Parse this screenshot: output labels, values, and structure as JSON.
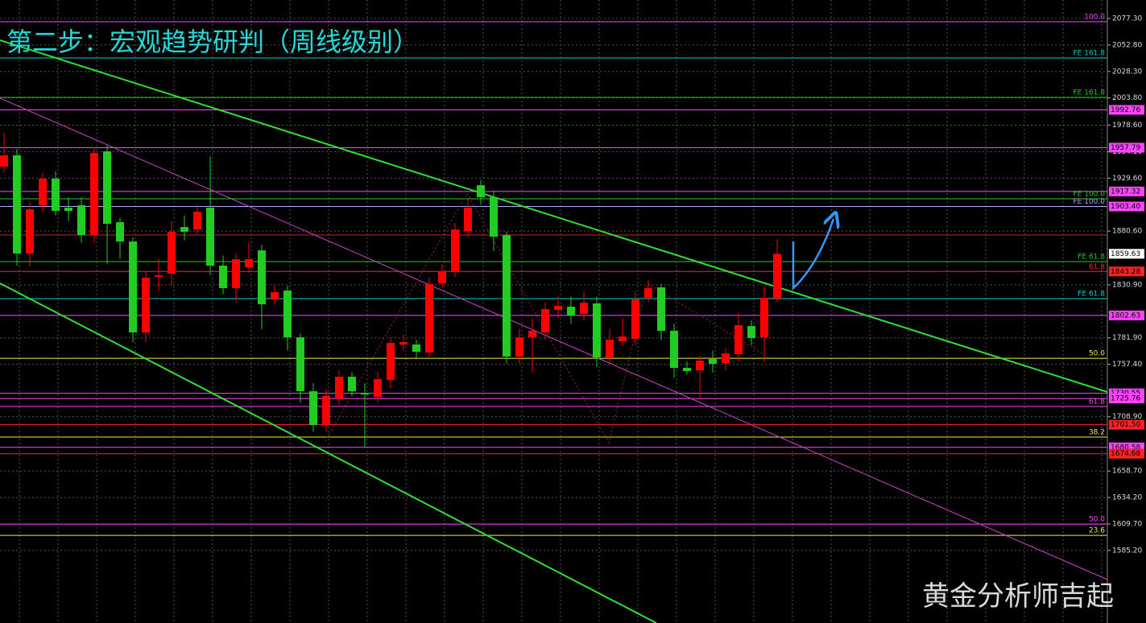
{
  "chart_data": {
    "type": "candlestick",
    "title": "第二步：宏观趋势研判（周线级别）",
    "watermark": "黄金分析师吉起",
    "up_color": "#ff0000",
    "down_color": "#22cc22",
    "ylim": [
      1518.1,
      2094.4
    ],
    "yticks": [
      {
        "value": 2077.3,
        "label": "2077.30"
      },
      {
        "value": 2052.8,
        "label": "2052.80"
      },
      {
        "value": 2028.3,
        "label": "2028.30"
      },
      {
        "value": 2003.8,
        "label": "2003.80"
      },
      {
        "value": 1978.6,
        "label": "1978.60"
      },
      {
        "value": 1954.1,
        "label": "1954.10"
      },
      {
        "value": 1929.6,
        "label": "1929.60"
      },
      {
        "value": 1880.6,
        "label": "1880.60"
      },
      {
        "value": 1830.9,
        "label": "1830.90"
      },
      {
        "value": 1781.9,
        "label": "1781.90"
      },
      {
        "value": 1757.4,
        "label": "1757.40"
      },
      {
        "value": 1708.9,
        "label": "1708.90"
      },
      {
        "value": 1658.7,
        "label": "1658.70"
      },
      {
        "value": 1634.2,
        "label": "1634.20"
      },
      {
        "value": 1609.7,
        "label": "1609.70"
      },
      {
        "value": 1585.2,
        "label": "1585.20"
      }
    ],
    "grid": true,
    "open": [
      1940.3,
      1950.7,
      1859.9,
      1904.5,
      1929.1,
      1902.3,
      1904.5,
      1877.0,
      1954.4,
      1888.9,
      1871.0,
      1786.9,
      1838.3,
      1841.2,
      1884.4,
      1882.2,
      1902.3,
      1848.7,
      1827.8,
      1847.2,
      1862.8,
      1817.4,
      1825.6,
      1782.4,
      1732.5,
      1702.0,
      1725.8,
      1745.9,
      1731.0,
      1727.3,
      1742.9,
      1775.7,
      1775.7,
      1768.3,
      1832.3,
      1842.7,
      1880.7,
      1923.1,
      1912.0,
      1877.0,
      1764.5,
      1782.4,
      1786.9,
      1807.7,
      1810.7,
      1804.0,
      1813.7,
      1763.8,
      1778.7,
      1780.9,
      1818.9,
      1828.6,
      1788.4,
      1754.1,
      1751.9,
      1762.3,
      1758.6,
      1766.8,
      1792.8,
      1782.4,
      1818.2
    ],
    "high": [
      1971.5,
      1956.6,
      1908,
      1935,
      1936,
      1912,
      1912,
      1958,
      1960,
      1893,
      1875,
      1843,
      1855,
      1890,
      1895,
      1905,
      1950,
      1858,
      1860,
      1870,
      1868,
      1830,
      1830,
      1786,
      1740,
      1735,
      1752,
      1750,
      1740,
      1750,
      1782,
      1785,
      1780,
      1838,
      1850,
      1888,
      1910,
      1928,
      1918,
      1880,
      1790,
      1800,
      1815,
      1820,
      1820,
      1825,
      1820,
      1790,
      1800,
      1825,
      1835,
      1832,
      1795,
      1760,
      1765,
      1770,
      1772,
      1805,
      1798,
      1830,
      1873
    ],
    "low": [
      1935,
      1848.7,
      1848,
      1898,
      1895,
      1890,
      1870,
      1870,
      1850,
      1855,
      1778,
      1778,
      1825,
      1830,
      1872,
      1878,
      1840,
      1822,
      1815,
      1842,
      1790,
      1812,
      1770,
      1722,
      1695,
      1695,
      1720,
      1728,
      1680,
      1722,
      1735,
      1770,
      1762,
      1762,
      1828,
      1838,
      1875,
      1905,
      1862,
      1758,
      1758,
      1750,
      1780,
      1800,
      1795,
      1798,
      1755,
      1757,
      1775,
      1775,
      1815,
      1780,
      1745,
      1748,
      1725,
      1750,
      1752,
      1760,
      1775,
      1760,
      1815
    ],
    "close": [
      1950.7,
      1859.9,
      1900.8,
      1929.1,
      1899.3,
      1899.3,
      1877.0,
      1952.9,
      1887.4,
      1871.0,
      1786.9,
      1837.5,
      1839.7,
      1880.0,
      1880.0,
      1898.6,
      1848.7,
      1827.8,
      1854.6,
      1854.6,
      1812.9,
      1824.1,
      1782.4,
      1732.5,
      1701.3,
      1728.1,
      1745.9,
      1732.5,
      1729.5,
      1743.7,
      1777.2,
      1778.0,
      1769.0,
      1831.6,
      1842.7,
      1882.2,
      1902.3,
      1912.0,
      1875.5,
      1764.5,
      1782.4,
      1788.4,
      1808.5,
      1811.5,
      1802.5,
      1814.4,
      1763.8,
      1780.2,
      1783.1,
      1817.4,
      1827.8,
      1788.4,
      1754.1,
      1751.1,
      1760.8,
      1757.8,
      1767.5,
      1793.6,
      1781.7,
      1818.9,
      1859.6
    ],
    "levels": [
      {
        "value": 2074.3,
        "color": "#ff44ff",
        "label": "100.0"
      },
      {
        "value": 2040.8,
        "color": "#00cccc",
        "label": "FE 161.8"
      },
      {
        "value": 2004.3,
        "color": "#22cc22",
        "label": "FE 161.8"
      },
      {
        "value": 1992.76,
        "color": "#ff44ff"
      },
      {
        "value": 1957.79,
        "color": "#ff44ff"
      },
      {
        "value": 1917.32,
        "color": "#ff44ff"
      },
      {
        "value": 1910.5,
        "color": "#22cc22",
        "label": "FE 100.0"
      },
      {
        "value": 1903.4,
        "color": "#aaaaff",
        "label": "FE 100.0"
      },
      {
        "value": 1877.0,
        "color": "#cc2222"
      },
      {
        "value": 1852.4,
        "color": "#22cc22",
        "label": "FE 61.8"
      },
      {
        "value": 1843.28,
        "color": "#ff2222",
        "label": "61.8"
      },
      {
        "value": 1818.2,
        "color": "#00cccc",
        "label": "FE 61.8"
      },
      {
        "value": 1802.63,
        "color": "#ff44ff"
      },
      {
        "value": 1763.0,
        "color": "#eeee44",
        "label": "50.0"
      },
      {
        "value": 1730.55,
        "color": "#ff44ff"
      },
      {
        "value": 1725.76,
        "color": "#ff44ff"
      },
      {
        "value": 1718.4,
        "color": "#ff44ff",
        "label": "61.8"
      },
      {
        "value": 1701.5,
        "color": "#ff2222"
      },
      {
        "value": 1690.1,
        "color": "#eeee44",
        "label": "38.2"
      },
      {
        "value": 1680.58,
        "color": "#ff44ff"
      },
      {
        "value": 1674.68,
        "color": "#ff2222"
      },
      {
        "value": 1609.6,
        "color": "#ff44ff",
        "label": "50.0"
      },
      {
        "value": 1599.2,
        "color": "#eeee44",
        "label": "23.6"
      }
    ],
    "price_labels": [
      {
        "value": 1992.76,
        "label": "1992.76",
        "color": "#ff44ff"
      },
      {
        "value": 1957.79,
        "label": "1957.79",
        "color": "#ff44ff"
      },
      {
        "value": 1917.32,
        "label": "1917.32",
        "color": "#ff44ff"
      },
      {
        "value": 1903.4,
        "label": "1903.40",
        "color": "#ff44ff"
      },
      {
        "value": 1859.63,
        "label": "1859.63",
        "color": "#ffffff"
      },
      {
        "value": 1843.28,
        "label": "1843.28",
        "color": "#ff2222"
      },
      {
        "value": 1802.63,
        "label": "1802.63",
        "color": "#ff44ff"
      },
      {
        "value": 1730.55,
        "label": "1730.55",
        "color": "#ff44ff"
      },
      {
        "value": 1725.76,
        "label": "1725.76",
        "color": "#ff44ff"
      },
      {
        "value": 1701.5,
        "label": "1701.50",
        "color": "#ff2222"
      },
      {
        "value": 1680.58,
        "label": "1680.58",
        "color": "#ff44ff"
      },
      {
        "value": 1674.68,
        "label": "1674.68",
        "color": "#ff2222"
      }
    ]
  }
}
